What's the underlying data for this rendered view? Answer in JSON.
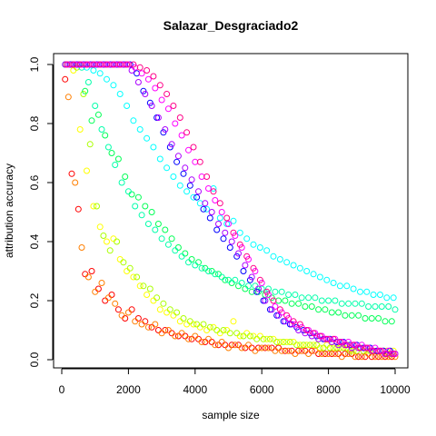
{
  "chart_data": {
    "type": "scatter",
    "title": "Salazar_Desgraciado2",
    "xlabel": "sample size",
    "ylabel": "attribution accuracy",
    "xlim": [
      0,
      10000
    ],
    "ylim": [
      0,
      1
    ],
    "x_ticks": [
      0,
      2000,
      4000,
      6000,
      8000,
      10000
    ],
    "y_ticks": [
      0.0,
      0.2,
      0.4,
      0.6,
      0.8,
      1.0
    ],
    "x_tick_labels": [
      "0",
      "2000",
      "4000",
      "6000",
      "8000",
      "10000"
    ],
    "y_tick_labels": [
      "0.0",
      "0.2",
      "0.4",
      "0.6",
      "0.8",
      "1.0"
    ],
    "grid": false,
    "legend": "none",
    "series": [
      {
        "color": "#FF0000",
        "x": [
          100,
          300,
          500,
          700,
          900,
          1100,
          1300,
          1500,
          1700,
          1900,
          2100,
          2300,
          2500,
          2700,
          2900,
          3100,
          3300,
          3500,
          3700,
          3900,
          4100,
          4300,
          4500,
          4700,
          4900,
          5100,
          5300,
          5500,
          5700,
          5900,
          6100,
          6300,
          6500,
          6700,
          6900,
          7100,
          7300,
          7500,
          7700,
          7900,
          8100,
          8300,
          8500,
          8700,
          8900,
          9100,
          9300,
          9500,
          9700,
          9900
        ],
        "y": [
          0.95,
          0.63,
          0.51,
          0.29,
          0.3,
          0.24,
          0.2,
          0.22,
          0.17,
          0.14,
          0.17,
          0.14,
          0.13,
          0.11,
          0.1,
          0.1,
          0.09,
          0.08,
          0.08,
          0.07,
          0.07,
          0.06,
          0.06,
          0.05,
          0.05,
          0.05,
          0.05,
          0.04,
          0.04,
          0.04,
          0.04,
          0.04,
          0.04,
          0.03,
          0.03,
          0.03,
          0.03,
          0.03,
          0.02,
          0.02,
          0.02,
          0.02,
          0.02,
          0.02,
          0.01,
          0.01,
          0.01,
          0.01,
          0.01,
          0.01
        ]
      },
      {
        "color": "#FF7F00",
        "x": [
          200,
          400,
          600,
          800,
          1000,
          1200,
          1400,
          1600,
          1800,
          2000,
          2200,
          2400,
          2600,
          2800,
          3000,
          3200,
          3400,
          3600,
          3800,
          4000,
          4200,
          4400,
          4600,
          4800,
          5000,
          5200,
          5400,
          5600,
          5800,
          6000,
          6200,
          6400,
          6600,
          6800,
          7000,
          7200,
          7400,
          7600,
          7800,
          8000,
          8200,
          8400,
          8600,
          8800,
          9000,
          9200,
          9400,
          9600,
          9800,
          10000
        ],
        "y": [
          0.89,
          0.6,
          0.38,
          0.28,
          0.23,
          0.26,
          0.21,
          0.19,
          0.15,
          0.16,
          0.13,
          0.12,
          0.11,
          0.12,
          0.09,
          0.1,
          0.08,
          0.09,
          0.07,
          0.08,
          0.06,
          0.07,
          0.05,
          0.06,
          0.04,
          0.05,
          0.04,
          0.05,
          0.03,
          0.04,
          0.04,
          0.03,
          0.03,
          0.03,
          0.02,
          0.03,
          0.02,
          0.03,
          0.02,
          0.02,
          0.02,
          0.01,
          0.02,
          0.01,
          0.01,
          0.02,
          0.01,
          0.01,
          0.01,
          0.01
        ]
      },
      {
        "color": "#FFFF00",
        "x": [
          150,
          350,
          550,
          750,
          950,
          1150,
          1350,
          1550,
          1750,
          1950,
          2150,
          2350,
          2550,
          2750,
          2950,
          3150,
          3350,
          3550,
          3750,
          3950,
          4150,
          4350,
          4550,
          4750,
          4950,
          5150,
          5350,
          5550,
          5750,
          5950,
          6150,
          6350,
          6550,
          6750,
          6950,
          7150,
          7350,
          7550,
          7750,
          7950,
          8150,
          8350,
          8550,
          8750,
          8950,
          9150,
          9350,
          9550,
          9750,
          9950
        ],
        "y": [
          1.0,
          0.98,
          0.78,
          0.64,
          0.52,
          0.45,
          0.4,
          0.41,
          0.34,
          0.3,
          0.28,
          0.25,
          0.22,
          0.2,
          0.17,
          0.16,
          0.15,
          0.13,
          0.12,
          0.12,
          0.11,
          0.1,
          0.11,
          0.09,
          0.1,
          0.13,
          0.08,
          0.09,
          0.08,
          0.08,
          0.07,
          0.07,
          0.06,
          0.06,
          0.06,
          0.05,
          0.05,
          0.05,
          0.04,
          0.05,
          0.04,
          0.04,
          0.04,
          0.03,
          0.04,
          0.03,
          0.03,
          0.03,
          0.03,
          0.03
        ]
      },
      {
        "color": "#AAFF00",
        "x": [
          250,
          450,
          650,
          850,
          1050,
          1250,
          1450,
          1650,
          1850,
          2050,
          2250,
          2450,
          2650,
          2850,
          3050,
          3250,
          3450,
          3650,
          3850,
          4050,
          4250,
          4450,
          4650,
          4850,
          5050,
          5250,
          5450,
          5650,
          5850,
          6050,
          6250,
          6450,
          6650,
          6850,
          7050,
          7250,
          7450,
          7650,
          7850,
          8050,
          8250,
          8450,
          8650,
          8850,
          9050,
          9250,
          9450,
          9650,
          9850,
          10000
        ],
        "y": [
          1.0,
          0.99,
          0.9,
          0.73,
          0.52,
          0.42,
          0.37,
          0.4,
          0.33,
          0.31,
          0.28,
          0.25,
          0.24,
          0.21,
          0.19,
          0.17,
          0.16,
          0.14,
          0.13,
          0.12,
          0.12,
          0.11,
          0.1,
          0.1,
          0.09,
          0.09,
          0.08,
          0.08,
          0.07,
          0.07,
          0.07,
          0.06,
          0.06,
          0.06,
          0.05,
          0.05,
          0.05,
          0.05,
          0.04,
          0.04,
          0.04,
          0.04,
          0.03,
          0.03,
          0.03,
          0.03,
          0.03,
          0.03,
          0.02,
          0.02
        ]
      },
      {
        "color": "#00FF55",
        "x": [
          100,
          300,
          500,
          700,
          900,
          1100,
          1300,
          1500,
          1700,
          1900,
          2100,
          2300,
          2500,
          2700,
          2900,
          3100,
          3300,
          3500,
          3700,
          3900,
          4100,
          4300,
          4500,
          4700,
          4900,
          5100,
          5300,
          5500,
          5700,
          5900,
          6100,
          6300,
          6500,
          6700,
          6900,
          7100,
          7300,
          7500,
          7700,
          7900,
          8100,
          8300,
          8500,
          8700,
          8900,
          9100,
          9300,
          9500,
          9700,
          9900
        ],
        "y": [
          1.0,
          1.0,
          1.0,
          0.91,
          0.81,
          0.83,
          0.76,
          0.7,
          0.68,
          0.62,
          0.56,
          0.55,
          0.52,
          0.5,
          0.46,
          0.44,
          0.41,
          0.38,
          0.36,
          0.34,
          0.33,
          0.31,
          0.3,
          0.29,
          0.27,
          0.26,
          0.25,
          0.24,
          0.23,
          0.23,
          0.22,
          0.21,
          0.2,
          0.2,
          0.19,
          0.19,
          0.18,
          0.18,
          0.17,
          0.17,
          0.16,
          0.16,
          0.15,
          0.15,
          0.15,
          0.14,
          0.14,
          0.14,
          0.13,
          0.13
        ]
      },
      {
        "color": "#00FFAA",
        "x": [
          200,
          400,
          600,
          800,
          1000,
          1200,
          1400,
          1600,
          1800,
          2000,
          2200,
          2400,
          2600,
          2800,
          3000,
          3200,
          3400,
          3600,
          3800,
          4000,
          4200,
          4400,
          4600,
          4800,
          5000,
          5200,
          5400,
          5600,
          5800,
          6000,
          6200,
          6400,
          6600,
          6800,
          7000,
          7200,
          7400,
          7600,
          7800,
          8000,
          8200,
          8400,
          8600,
          8800,
          9000,
          9200,
          9400,
          9600,
          9800,
          10000
        ],
        "y": [
          1.0,
          1.0,
          0.99,
          0.94,
          0.86,
          0.78,
          0.72,
          0.66,
          0.6,
          0.57,
          0.52,
          0.49,
          0.46,
          0.44,
          0.41,
          0.39,
          0.37,
          0.35,
          0.33,
          0.32,
          0.31,
          0.3,
          0.29,
          0.28,
          0.27,
          0.27,
          0.26,
          0.25,
          0.25,
          0.24,
          0.24,
          0.23,
          0.23,
          0.22,
          0.22,
          0.21,
          0.21,
          0.21,
          0.2,
          0.2,
          0.2,
          0.19,
          0.19,
          0.19,
          0.19,
          0.18,
          0.18,
          0.18,
          0.18,
          0.17
        ]
      },
      {
        "color": "#00FFFF",
        "x": [
          150,
          350,
          550,
          750,
          950,
          1150,
          1350,
          1550,
          1750,
          1950,
          2150,
          2350,
          2550,
          2750,
          2950,
          3150,
          3350,
          3550,
          3750,
          3950,
          4150,
          4350,
          4550,
          4750,
          4950,
          5150,
          5350,
          5550,
          5750,
          5950,
          6150,
          6350,
          6550,
          6750,
          6950,
          7150,
          7350,
          7550,
          7750,
          7950,
          8150,
          8350,
          8550,
          8750,
          8950,
          9150,
          9350,
          9550,
          9750,
          9950
        ],
        "y": [
          1.0,
          1.0,
          1.0,
          0.99,
          0.98,
          0.97,
          0.95,
          0.93,
          0.9,
          0.86,
          0.81,
          0.78,
          0.75,
          0.72,
          0.68,
          0.65,
          0.62,
          0.59,
          0.57,
          0.55,
          0.53,
          0.51,
          0.58,
          0.48,
          0.46,
          0.47,
          0.43,
          0.41,
          0.39,
          0.38,
          0.37,
          0.35,
          0.34,
          0.33,
          0.32,
          0.31,
          0.3,
          0.29,
          0.28,
          0.27,
          0.26,
          0.25,
          0.25,
          0.24,
          0.23,
          0.23,
          0.22,
          0.22,
          0.21,
          0.21
        ]
      },
      {
        "color": "#0000FF",
        "x": [
          250,
          450,
          650,
          850,
          1050,
          1250,
          1450,
          1650,
          1850,
          2050,
          2250,
          2450,
          2650,
          2850,
          3050,
          3250,
          3450,
          3650,
          3850,
          4050,
          4250,
          4450,
          4650,
          4850,
          5050,
          5250,
          5450,
          5650,
          5850,
          6050,
          6250,
          6450,
          6650,
          6850,
          7050,
          7250,
          7450,
          7650,
          7850,
          8050,
          8250,
          8450,
          8650,
          8850,
          9050,
          9250,
          9450,
          9650,
          9850,
          10000
        ],
        "y": [
          1.0,
          1.0,
          1.0,
          1.0,
          1.0,
          1.0,
          1.0,
          1.0,
          1.0,
          1.0,
          0.97,
          0.91,
          0.87,
          0.82,
          0.77,
          0.72,
          0.67,
          0.63,
          0.59,
          0.55,
          0.51,
          0.48,
          0.44,
          0.41,
          0.38,
          0.35,
          0.3,
          0.27,
          0.23,
          0.2,
          0.17,
          0.15,
          0.13,
          0.12,
          0.11,
          0.1,
          0.09,
          0.08,
          0.07,
          0.07,
          0.06,
          0.06,
          0.05,
          0.05,
          0.04,
          0.04,
          0.03,
          0.03,
          0.03,
          0.02
        ]
      },
      {
        "color": "#AA00FF",
        "x": [
          100,
          300,
          500,
          700,
          900,
          1100,
          1300,
          1500,
          1700,
          1900,
          2100,
          2300,
          2500,
          2700,
          2900,
          3100,
          3300,
          3500,
          3700,
          3900,
          4100,
          4300,
          4500,
          4700,
          4900,
          5100,
          5300,
          5500,
          5700,
          5900,
          6100,
          6300,
          6500,
          6700,
          6900,
          7100,
          7300,
          7500,
          7700,
          7900,
          8100,
          8300,
          8500,
          8700,
          8900,
          9100,
          9300,
          9500,
          9700,
          9900
        ],
        "y": [
          1.0,
          1.0,
          1.0,
          1.0,
          1.0,
          1.0,
          1.0,
          1.0,
          1.0,
          1.0,
          0.98,
          0.94,
          0.9,
          0.86,
          0.82,
          0.78,
          0.73,
          0.69,
          0.65,
          0.61,
          0.57,
          0.53,
          0.5,
          0.46,
          0.43,
          0.4,
          0.36,
          0.32,
          0.28,
          0.24,
          0.2,
          0.17,
          0.15,
          0.13,
          0.12,
          0.1,
          0.09,
          0.08,
          0.07,
          0.07,
          0.06,
          0.05,
          0.05,
          0.04,
          0.04,
          0.04,
          0.03,
          0.03,
          0.02,
          0.02
        ]
      },
      {
        "color": "#FF00FF",
        "x": [
          200,
          400,
          600,
          800,
          1000,
          1200,
          1400,
          1600,
          1800,
          2000,
          2200,
          2400,
          2600,
          2800,
          3000,
          3200,
          3400,
          3600,
          3800,
          4000,
          4200,
          4400,
          4600,
          4800,
          5000,
          5200,
          5400,
          5600,
          5800,
          6000,
          6200,
          6400,
          6600,
          6800,
          7000,
          7200,
          7400,
          7600,
          7800,
          8000,
          8200,
          8400,
          8600,
          8800,
          9000,
          9200,
          9400,
          9600,
          9800,
          10000
        ],
        "y": [
          1.0,
          1.0,
          1.0,
          1.0,
          1.0,
          1.0,
          1.0,
          1.0,
          1.0,
          1.0,
          0.99,
          0.97,
          0.95,
          0.92,
          0.88,
          0.85,
          0.8,
          0.76,
          0.71,
          0.67,
          0.62,
          0.58,
          0.54,
          0.5,
          0.46,
          0.42,
          0.38,
          0.34,
          0.3,
          0.26,
          0.22,
          0.18,
          0.16,
          0.14,
          0.12,
          0.11,
          0.1,
          0.09,
          0.08,
          0.07,
          0.07,
          0.06,
          0.06,
          0.05,
          0.05,
          0.04,
          0.04,
          0.03,
          0.03,
          0.02
        ]
      },
      {
        "color": "#FF0088",
        "x": [
          150,
          350,
          550,
          750,
          950,
          1150,
          1350,
          1550,
          1750,
          1950,
          2150,
          2350,
          2550,
          2750,
          2950,
          3150,
          3350,
          3550,
          3750,
          3950,
          4150,
          4350,
          4550,
          4750,
          4950,
          5150,
          5350,
          5550,
          5750,
          5950,
          6150,
          6350,
          6550,
          6750,
          6950,
          7150,
          7350,
          7550,
          7750,
          7950,
          8150,
          8350,
          8550,
          8750,
          8950,
          9150,
          9350,
          9550,
          9750,
          9950
        ],
        "y": [
          1.0,
          1.0,
          1.0,
          1.0,
          1.0,
          1.0,
          1.0,
          1.0,
          1.0,
          1.0,
          1.0,
          0.99,
          0.98,
          0.96,
          0.93,
          0.9,
          0.86,
          0.82,
          0.77,
          0.72,
          0.67,
          0.62,
          0.57,
          0.53,
          0.48,
          0.43,
          0.39,
          0.35,
          0.31,
          0.27,
          0.23,
          0.2,
          0.17,
          0.15,
          0.13,
          0.12,
          0.1,
          0.09,
          0.08,
          0.07,
          0.07,
          0.06,
          0.05,
          0.05,
          0.04,
          0.04,
          0.03,
          0.03,
          0.02,
          0.02
        ]
      }
    ]
  }
}
